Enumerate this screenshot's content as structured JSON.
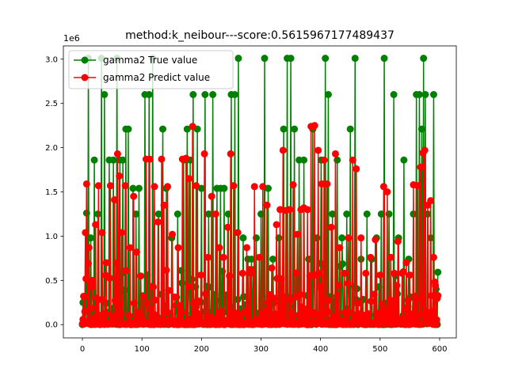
{
  "chart_data": {
    "type": "line",
    "title": "method:k_neibour---score:0.5615967177489437",
    "xlabel": "",
    "ylabel": "",
    "y_offset_label": "1e6",
    "xlim": [
      -32,
      628
    ],
    "ylim": [
      -150000,
      3150000
    ],
    "x_ticks": [
      0,
      100,
      200,
      300,
      400,
      500,
      600
    ],
    "y_ticks": [
      0,
      500000,
      1000000,
      1500000,
      2000000,
      2500000,
      3000000
    ],
    "x_tick_labels": [
      "0",
      "100",
      "200",
      "300",
      "400",
      "500",
      "600"
    ],
    "y_tick_labels": [
      "0.0",
      "0.5",
      "1.0",
      "1.5",
      "2.0",
      "2.5",
      "3.0"
    ],
    "grid": false,
    "legend_position": "upper-left",
    "n_points": 598,
    "series": [
      {
        "name": "gamma2 True value",
        "color": "#008000",
        "marker": "circle",
        "peaks": [
          [
            1,
            250000
          ],
          [
            4,
            300000
          ],
          [
            7,
            1260000
          ],
          [
            10,
            3010000
          ],
          [
            14,
            980000
          ],
          [
            20,
            1860000
          ],
          [
            26,
            1250000
          ],
          [
            32,
            3010000
          ],
          [
            37,
            2600000
          ],
          [
            45,
            1860000
          ],
          [
            52,
            1860000
          ],
          [
            58,
            3010000
          ],
          [
            63,
            1860000
          ],
          [
            68,
            1860000
          ],
          [
            73,
            2210000
          ],
          [
            77,
            2210000
          ],
          [
            85,
            1540000
          ],
          [
            90,
            1250000
          ],
          [
            95,
            1540000
          ],
          [
            105,
            2600000
          ],
          [
            112,
            2600000
          ],
          [
            118,
            3010000
          ],
          [
            128,
            1250000
          ],
          [
            135,
            2210000
          ],
          [
            141,
            1540000
          ],
          [
            150,
            980000
          ],
          [
            160,
            1250000
          ],
          [
            170,
            1860000
          ],
          [
            176,
            2210000
          ],
          [
            181,
            1860000
          ],
          [
            186,
            2600000
          ],
          [
            193,
            2210000
          ],
          [
            200,
            1540000
          ],
          [
            206,
            2600000
          ],
          [
            212,
            1250000
          ],
          [
            219,
            2600000
          ],
          [
            226,
            1540000
          ],
          [
            232,
            1540000
          ],
          [
            238,
            1540000
          ],
          [
            245,
            1250000
          ],
          [
            250,
            2600000
          ],
          [
            256,
            2600000
          ],
          [
            262,
            3010000
          ],
          [
            270,
            980000
          ],
          [
            278,
            740000
          ],
          [
            284,
            740000
          ],
          [
            292,
            980000
          ],
          [
            300,
            1250000
          ],
          [
            306,
            3010000
          ],
          [
            312,
            1540000
          ],
          [
            320,
            740000
          ],
          [
            330,
            980000
          ],
          [
            338,
            2210000
          ],
          [
            344,
            3010000
          ],
          [
            350,
            3010000
          ],
          [
            356,
            2210000
          ],
          [
            364,
            1860000
          ],
          [
            372,
            1860000
          ],
          [
            380,
            740000
          ],
          [
            387,
            2210000
          ],
          [
            394,
            980000
          ],
          [
            401,
            1860000
          ],
          [
            408,
            3010000
          ],
          [
            413,
            2600000
          ],
          [
            420,
            1250000
          ],
          [
            428,
            1860000
          ],
          [
            436,
            980000
          ],
          [
            444,
            1250000
          ],
          [
            450,
            2210000
          ],
          [
            458,
            3010000
          ],
          [
            468,
            740000
          ],
          [
            478,
            1250000
          ],
          [
            486,
            740000
          ],
          [
            494,
            980000
          ],
          [
            502,
            1250000
          ],
          [
            507,
            3010000
          ],
          [
            515,
            1250000
          ],
          [
            523,
            2600000
          ],
          [
            531,
            980000
          ],
          [
            540,
            1860000
          ],
          [
            548,
            740000
          ],
          [
            556,
            1250000
          ],
          [
            561,
            2600000
          ],
          [
            566,
            2600000
          ],
          [
            570,
            2210000
          ],
          [
            573,
            3010000
          ],
          [
            576,
            2600000
          ],
          [
            580,
            1250000
          ],
          [
            585,
            980000
          ],
          [
            590,
            2600000
          ],
          [
            594,
            400000
          ]
        ]
      },
      {
        "name": "gamma2 Predict value",
        "color": "#ff0000",
        "marker": "circle",
        "peaks": [
          [
            2,
            320000
          ],
          [
            5,
            1040000
          ],
          [
            7,
            1590000
          ],
          [
            11,
            870000
          ],
          [
            17,
            500000
          ],
          [
            22,
            1130000
          ],
          [
            27,
            1570000
          ],
          [
            33,
            1040000
          ],
          [
            40,
            700000
          ],
          [
            47,
            1570000
          ],
          [
            54,
            1410000
          ],
          [
            59,
            1930000
          ],
          [
            62,
            1680000
          ],
          [
            66,
            1040000
          ],
          [
            72,
            1570000
          ],
          [
            80,
            870000
          ],
          [
            86,
            1450000
          ],
          [
            91,
            820000
          ],
          [
            98,
            550000
          ],
          [
            107,
            1870000
          ],
          [
            113,
            1870000
          ],
          [
            121,
            1560000
          ],
          [
            127,
            1160000
          ],
          [
            133,
            1870000
          ],
          [
            137,
            1350000
          ],
          [
            143,
            1560000
          ],
          [
            151,
            1020000
          ],
          [
            161,
            870000
          ],
          [
            168,
            1870000
          ],
          [
            174,
            1880000
          ],
          [
            179,
            1650000
          ],
          [
            185,
            2240000
          ],
          [
            191,
            1570000
          ],
          [
            199,
            560000
          ],
          [
            205,
            1930000
          ],
          [
            211,
            760000
          ],
          [
            217,
            1450000
          ],
          [
            224,
            1250000
          ],
          [
            230,
            870000
          ],
          [
            237,
            760000
          ],
          [
            244,
            1100000
          ],
          [
            249,
            1930000
          ],
          [
            254,
            1570000
          ],
          [
            261,
            1040000
          ],
          [
            269,
            580000
          ],
          [
            276,
            870000
          ],
          [
            283,
            580000
          ],
          [
            289,
            1560000
          ],
          [
            297,
            760000
          ],
          [
            303,
            1560000
          ],
          [
            310,
            1350000
          ],
          [
            318,
            640000
          ],
          [
            326,
            1130000
          ],
          [
            332,
            1300000
          ],
          [
            337,
            1970000
          ],
          [
            342,
            1290000
          ],
          [
            348,
            1300000
          ],
          [
            354,
            1580000
          ],
          [
            361,
            1020000
          ],
          [
            367,
            1300000
          ],
          [
            372,
            1320000
          ],
          [
            378,
            1300000
          ],
          [
            384,
            2240000
          ],
          [
            390,
            2250000
          ],
          [
            396,
            1970000
          ],
          [
            402,
            1590000
          ],
          [
            406,
            1860000
          ],
          [
            411,
            1590000
          ],
          [
            418,
            1100000
          ],
          [
            425,
            1930000
          ],
          [
            432,
            870000
          ],
          [
            440,
            580000
          ],
          [
            447,
            980000
          ],
          [
            454,
            1860000
          ],
          [
            460,
            1760000
          ],
          [
            468,
            980000
          ],
          [
            476,
            580000
          ],
          [
            484,
            760000
          ],
          [
            492,
            960000
          ],
          [
            500,
            560000
          ],
          [
            506,
            1560000
          ],
          [
            512,
            1500000
          ],
          [
            518,
            760000
          ],
          [
            524,
            580000
          ],
          [
            530,
            940000
          ],
          [
            537,
            580000
          ],
          [
            544,
            700000
          ],
          [
            550,
            560000
          ],
          [
            556,
            1580000
          ],
          [
            563,
            1570000
          ],
          [
            568,
            1780000
          ],
          [
            572,
            1940000
          ],
          [
            575,
            1970000
          ],
          [
            580,
            1350000
          ],
          [
            585,
            1400000
          ],
          [
            590,
            760000
          ],
          [
            593,
            440000
          ]
        ]
      }
    ]
  }
}
